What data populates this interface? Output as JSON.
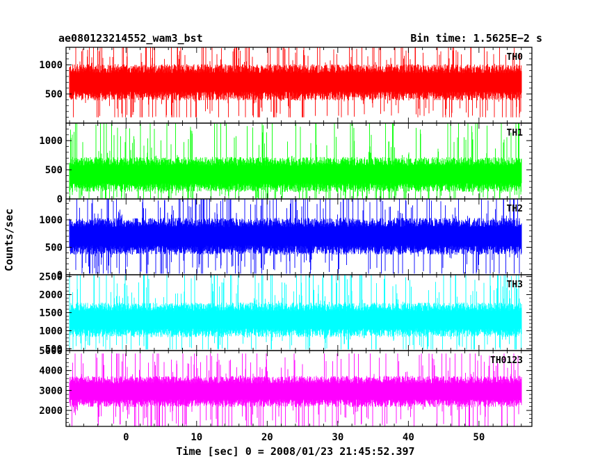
{
  "chart_data": {
    "type": "line",
    "title": "ae080123214552_wam3_bst",
    "subtitle": "Bin time: 1.5625E−2 s",
    "xlabel": "Time [sec] 0 = 2008/01/23 21:45:52.397",
    "ylabel": "Counts/sec",
    "xlim": [
      -8.5,
      57.5
    ],
    "data_range": [
      -8,
      56
    ],
    "xticks": [
      0,
      10,
      20,
      30,
      40,
      50
    ],
    "grid": false,
    "panels": [
      {
        "name": "TH0",
        "color": "#ff0000",
        "ylim": [
          0,
          1300
        ],
        "yticks": [
          500,
          1000
        ],
        "stats": {
          "center": 700,
          "spread": 260,
          "high": 1300,
          "low": 100
        }
      },
      {
        "name": "TH1",
        "color": "#00ff00",
        "ylim": [
          0,
          1300
        ],
        "yticks": [
          0,
          500,
          1000
        ],
        "stats": {
          "center": 420,
          "spread": 250,
          "high": 1300,
          "low": 10
        }
      },
      {
        "name": "TH2",
        "color": "#0000ff",
        "ylim": [
          0,
          1380
        ],
        "yticks": [
          0,
          500,
          1000
        ],
        "stats": {
          "center": 700,
          "spread": 280,
          "high": 1380,
          "low": 20
        }
      },
      {
        "name": "TH3",
        "color": "#00ffff",
        "ylim": [
          450,
          2550
        ],
        "yticks": [
          500,
          1000,
          1500,
          2000,
          2500
        ],
        "stats": {
          "center": 1300,
          "spread": 400,
          "high": 2550,
          "low": 480
        }
      },
      {
        "name": "TH0123",
        "color": "#ff00ff",
        "ylim": [
          1200,
          5000
        ],
        "yticks": [
          2000,
          3000,
          4000,
          5000
        ],
        "stats": {
          "center": 2950,
          "spread": 650,
          "high": 4850,
          "low": 1200
        }
      }
    ]
  }
}
